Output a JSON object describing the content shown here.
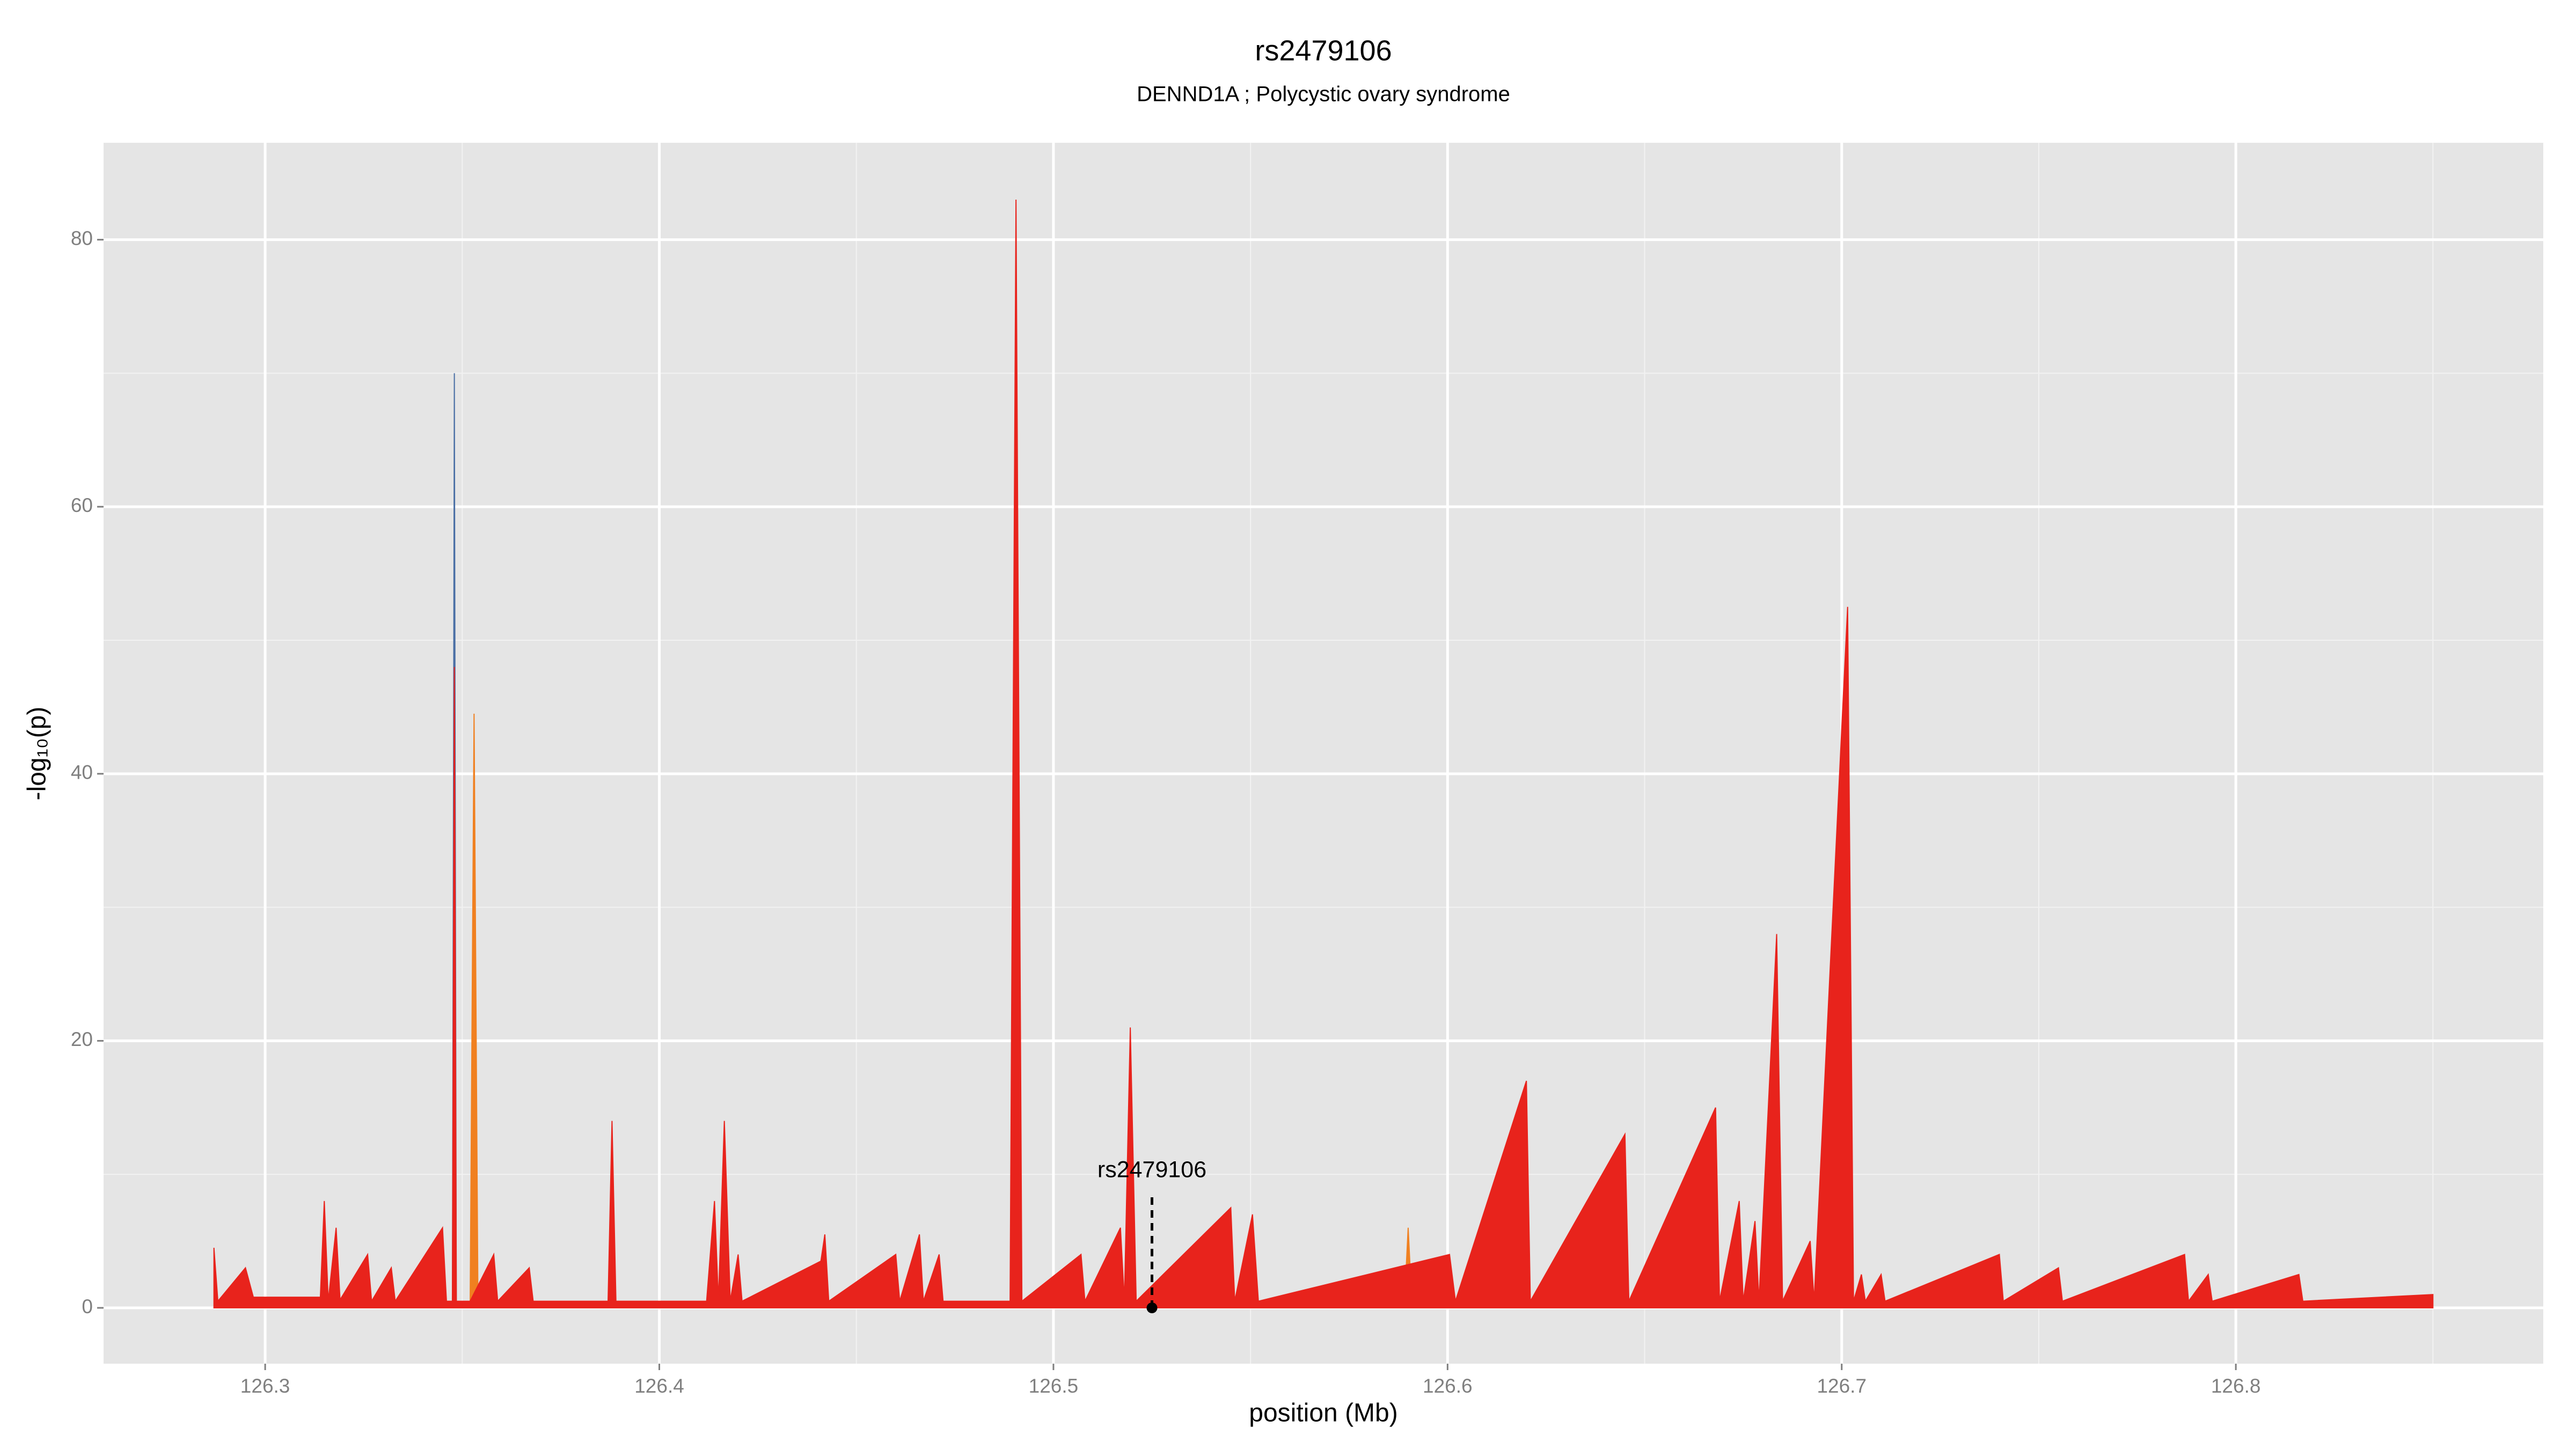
{
  "chart_data": {
    "type": "area",
    "title": "rs2479106",
    "subtitle": "DENND1A ; Polycystic ovary syndrome",
    "xlabel": "position (Mb)",
    "ylabel": "-log₁₀(p)",
    "xlim": [
      126.259,
      126.878
    ],
    "ylim": [
      -4.18,
      87.26
    ],
    "xticks": [
      126.3,
      126.4,
      126.5,
      126.6,
      126.7,
      126.8
    ],
    "yticks": [
      0,
      20,
      40,
      60,
      80
    ],
    "xminor_ticks": [
      126.35,
      126.45,
      126.55,
      126.65,
      126.75,
      126.85
    ],
    "yminor_ticks": [
      10,
      30,
      50,
      70
    ],
    "grid": true,
    "annotation": {
      "label": "rs2479106",
      "x": 126.525,
      "y": 0
    },
    "series": [
      {
        "color": "#4a6fa5",
        "x": [
          126.3475,
          126.348,
          126.3485
        ],
        "values": [
          0,
          70,
          0
        ]
      },
      {
        "color": "#f08020",
        "x": [
          126.352,
          126.353,
          126.354,
          126.589,
          126.59,
          126.591
        ],
        "values": [
          0,
          44.5,
          0,
          0,
          6,
          0
        ]
      },
      {
        "color": "#e8231c",
        "x": [
          126.287,
          126.288,
          126.295,
          126.297,
          126.314,
          126.315,
          126.316,
          126.318,
          126.319,
          126.326,
          126.327,
          126.332,
          126.333,
          126.345,
          126.346,
          126.3475,
          126.348,
          126.3485,
          126.352,
          126.358,
          126.359,
          126.367,
          126.368,
          126.387,
          126.388,
          126.389,
          126.412,
          126.414,
          126.415,
          126.4165,
          126.418,
          126.42,
          126.421,
          126.441,
          126.442,
          126.443,
          126.46,
          126.461,
          126.466,
          126.467,
          126.471,
          126.472,
          126.489,
          126.4905,
          126.492,
          126.507,
          126.508,
          126.517,
          126.518,
          126.5195,
          126.521,
          126.545,
          126.546,
          126.5505,
          126.552,
          126.6005,
          126.602,
          126.62,
          126.621,
          126.645,
          126.646,
          126.668,
          126.669,
          126.674,
          126.675,
          126.678,
          126.679,
          126.6835,
          126.685,
          126.692,
          126.693,
          126.7015,
          126.703,
          126.705,
          126.706,
          126.71,
          126.711,
          126.74,
          126.741,
          126.755,
          126.756,
          126.787,
          126.788,
          126.793,
          126.794,
          126.816,
          126.817,
          126.85
        ],
        "values": [
          4.5,
          0.5,
          3,
          0.8,
          0.8,
          8,
          0.5,
          6,
          0.6,
          4,
          0.5,
          3,
          0.5,
          6,
          0.5,
          0.5,
          48,
          0.5,
          0.5,
          4,
          0.5,
          3,
          0.5,
          0.5,
          14,
          0.5,
          0.5,
          8,
          0.5,
          14,
          0.5,
          4,
          0.5,
          3.5,
          5.5,
          0.5,
          4,
          0.5,
          5.5,
          0.5,
          4,
          0.5,
          0.5,
          83,
          0.5,
          4,
          0.5,
          6,
          0.5,
          21,
          0.5,
          7.5,
          0.5,
          7,
          0.5,
          4,
          0.5,
          17,
          0.5,
          13,
          0.5,
          15,
          0.5,
          8,
          0.5,
          6.5,
          0.5,
          28,
          0.5,
          5,
          0.5,
          52.5,
          0.5,
          2.5,
          0.5,
          2.5,
          0.5,
          4,
          0.5,
          3,
          0.5,
          4,
          0.5,
          2.5,
          0.5,
          2.5,
          0.5,
          1
        ]
      }
    ]
  }
}
